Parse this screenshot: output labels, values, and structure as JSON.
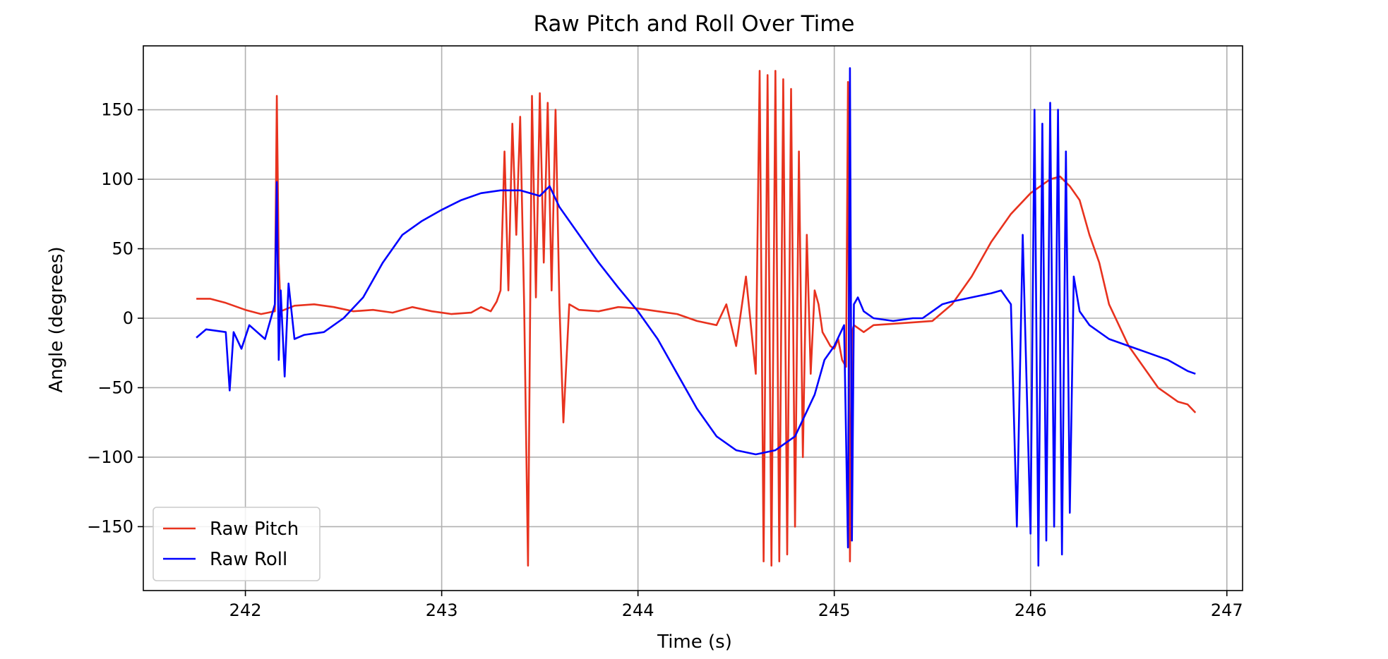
{
  "chart_data": {
    "type": "line",
    "title": "Raw Pitch and Roll Over Time",
    "xlabel": "Time (s)",
    "ylabel": "Angle (degrees)",
    "xlim": [
      241.48,
      247.08
    ],
    "ylim": [
      -196,
      196
    ],
    "xticks": [
      242,
      243,
      244,
      245,
      246,
      247
    ],
    "yticks": [
      -150,
      -100,
      -50,
      0,
      50,
      100,
      150
    ],
    "xtick_labels": [
      "242",
      "243",
      "244",
      "245",
      "246",
      "247"
    ],
    "ytick_labels": [
      "−150",
      "−100",
      "−50",
      "0",
      "50",
      "100",
      "150"
    ],
    "grid": true,
    "legend_position": "lower-left",
    "series": [
      {
        "name": "Raw Pitch",
        "color": "#e8321e",
        "x": [
          241.75,
          241.82,
          241.9,
          242.0,
          242.08,
          242.15,
          242.16,
          242.17,
          242.18,
          242.25,
          242.35,
          242.45,
          242.55,
          242.65,
          242.75,
          242.85,
          242.95,
          243.05,
          243.15,
          243.2,
          243.25,
          243.28,
          243.3,
          243.32,
          243.34,
          243.36,
          243.38,
          243.4,
          243.42,
          243.44,
          243.46,
          243.48,
          243.5,
          243.52,
          243.54,
          243.56,
          243.58,
          243.6,
          243.62,
          243.65,
          243.7,
          243.8,
          243.9,
          244.0,
          244.1,
          244.2,
          244.3,
          244.4,
          244.45,
          244.5,
          244.55,
          244.6,
          244.62,
          244.64,
          244.66,
          244.68,
          244.7,
          244.72,
          244.74,
          244.76,
          244.78,
          244.8,
          244.82,
          244.84,
          244.86,
          244.88,
          244.9,
          244.92,
          244.94,
          244.96,
          244.98,
          245.0,
          245.02,
          245.04,
          245.06,
          245.07,
          245.08,
          245.09,
          245.1,
          245.15,
          245.2,
          245.3,
          245.4,
          245.5,
          245.6,
          245.7,
          245.8,
          245.9,
          246.0,
          246.05,
          246.1,
          246.15,
          246.2,
          246.25,
          246.3,
          246.35,
          246.4,
          246.45,
          246.5,
          246.55,
          246.6,
          246.65,
          246.7,
          246.75,
          246.8,
          246.84
        ],
        "y": [
          14,
          14,
          11,
          6,
          3,
          5,
          160,
          40,
          5,
          9,
          10,
          8,
          5,
          6,
          4,
          8,
          5,
          3,
          4,
          8,
          5,
          12,
          20,
          120,
          20,
          140,
          60,
          145,
          10,
          -178,
          160,
          15,
          162,
          40,
          155,
          20,
          150,
          10,
          -75,
          10,
          6,
          5,
          8,
          7,
          5,
          3,
          -2,
          -5,
          10,
          -20,
          30,
          -40,
          178,
          -175,
          175,
          -178,
          178,
          -175,
          172,
          -170,
          165,
          -150,
          120,
          -100,
          60,
          -40,
          20,
          10,
          -10,
          -15,
          -20,
          -22,
          -15,
          -30,
          -35,
          170,
          -175,
          -10,
          -5,
          -10,
          -5,
          -4,
          -3,
          -2,
          10,
          30,
          55,
          75,
          90,
          95,
          100,
          102,
          95,
          85,
          60,
          40,
          10,
          -5,
          -20,
          -30,
          -40,
          -50,
          -55,
          -60,
          -62,
          -68
        ]
      },
      {
        "name": "Raw Roll",
        "color": "#0000ff",
        "x": [
          241.75,
          241.8,
          241.9,
          241.92,
          241.94,
          241.98,
          242.02,
          242.1,
          242.15,
          242.16,
          242.17,
          242.18,
          242.2,
          242.22,
          242.25,
          242.3,
          242.4,
          242.5,
          242.6,
          242.7,
          242.8,
          242.9,
          243.0,
          243.1,
          243.2,
          243.3,
          243.4,
          243.5,
          243.55,
          243.6,
          243.7,
          243.8,
          243.9,
          244.0,
          244.1,
          244.2,
          244.3,
          244.4,
          244.5,
          244.6,
          244.7,
          244.8,
          244.85,
          244.9,
          244.95,
          245.0,
          245.05,
          245.07,
          245.08,
          245.09,
          245.1,
          245.12,
          245.15,
          245.2,
          245.3,
          245.4,
          245.45,
          245.5,
          245.55,
          245.6,
          245.7,
          245.8,
          245.85,
          245.9,
          245.93,
          245.96,
          246.0,
          246.02,
          246.04,
          246.06,
          246.08,
          246.1,
          246.12,
          246.14,
          246.16,
          246.18,
          246.2,
          246.22,
          246.25,
          246.3,
          246.4,
          246.5,
          246.6,
          246.7,
          246.8,
          246.84
        ],
        "y": [
          -14,
          -8,
          -10,
          -52,
          -10,
          -22,
          -5,
          -15,
          10,
          98,
          -30,
          20,
          -42,
          25,
          -15,
          -12,
          -10,
          0,
          15,
          40,
          60,
          70,
          78,
          85,
          90,
          92,
          92,
          88,
          95,
          80,
          60,
          40,
          22,
          5,
          -15,
          -40,
          -65,
          -85,
          -95,
          -98,
          -95,
          -85,
          -70,
          -55,
          -30,
          -20,
          -5,
          -165,
          180,
          -160,
          10,
          15,
          5,
          0,
          -2,
          0,
          0,
          5,
          10,
          12,
          15,
          18,
          20,
          10,
          -150,
          60,
          -155,
          150,
          -178,
          140,
          -160,
          155,
          -150,
          150,
          -170,
          120,
          -140,
          30,
          5,
          -5,
          -15,
          -20,
          -25,
          -30,
          -38,
          -40
        ]
      }
    ]
  }
}
